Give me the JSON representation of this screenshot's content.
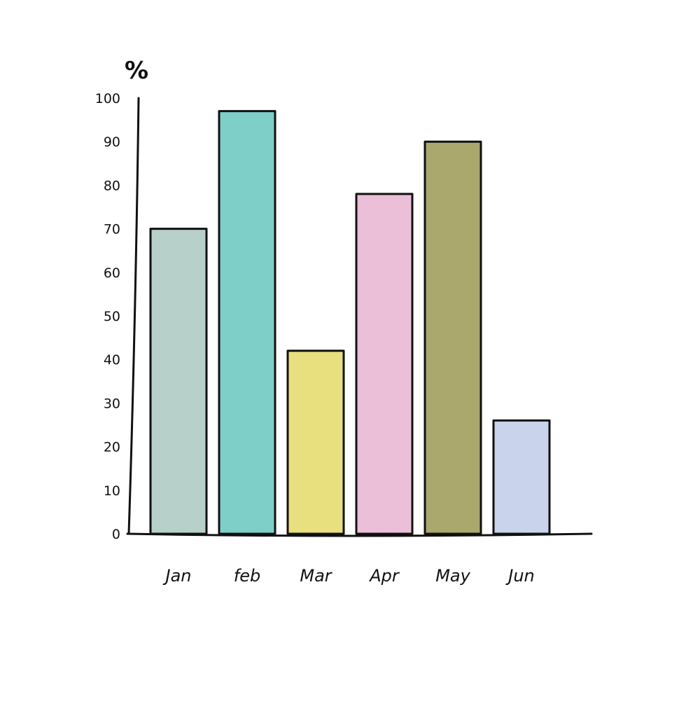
{
  "chart_data": {
    "type": "bar",
    "ylabel": "%",
    "categories": [
      "Jan",
      "feb",
      "Mar",
      "Apr",
      "May",
      "Jun"
    ],
    "values": [
      70,
      97,
      42,
      78,
      90,
      26
    ],
    "colors": [
      "#b7d0c9",
      "#7ecfc7",
      "#e8df7e",
      "#ebbfd8",
      "#aaa86c",
      "#c9d3ec"
    ],
    "ylim": [
      0,
      100
    ],
    "yticks": [
      0,
      10,
      20,
      30,
      40,
      50,
      60,
      70,
      80,
      90,
      100
    ],
    "ytick_labels": [
      "0",
      "10",
      "20",
      "30",
      "40",
      "50",
      "60",
      "70",
      "80",
      "90",
      "100"
    ],
    "grid": false,
    "legend": "none"
  }
}
